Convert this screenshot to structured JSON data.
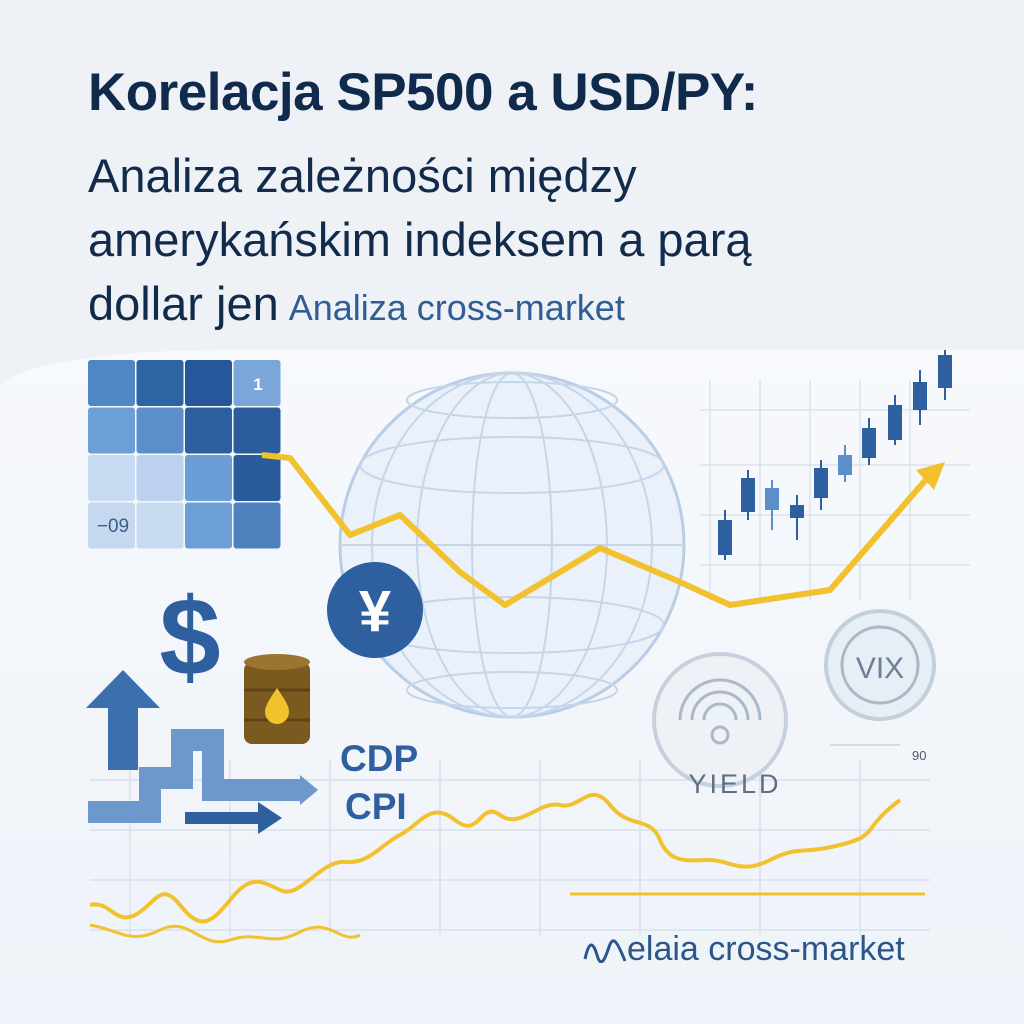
{
  "title": "Korelacja SP500 a USD/PY:",
  "subtitle_lines": [
    "Analiza zależności między",
    "amerykańskim indeksem a parą",
    "dollar jen"
  ],
  "tagline": "Analiza cross-market",
  "heatmap": {
    "label_max": "1",
    "label_min": "−09",
    "cell_colors": [
      [
        "#4f86c6",
        "#2e64a4",
        "#25579a",
        "#7aa6da"
      ],
      [
        "#6c9fd6",
        "#5a8fcb",
        "#2c5fa0",
        "#2b5d9d"
      ],
      [
        "#c7daf1",
        "#bcd2ee",
        "#6b9ed6",
        "#2a5b9b"
      ],
      [
        "#c5d8f0",
        "#c8dbf1",
        "#6d9fd7",
        "#4f81bf"
      ]
    ]
  },
  "icons": {
    "currency_yen": "¥",
    "currency_dollar": "$",
    "vix": "VIX",
    "yield": "YIELD"
  },
  "indicators": [
    "CDP",
    "CPI"
  ],
  "chart_label": "90",
  "logo": {
    "brand": "elaia",
    "suffix": " cross-market"
  },
  "colors": {
    "accent_yellow": "#f2c12e",
    "primary_blue": "#2e5f9e",
    "title": "#102a4c"
  }
}
